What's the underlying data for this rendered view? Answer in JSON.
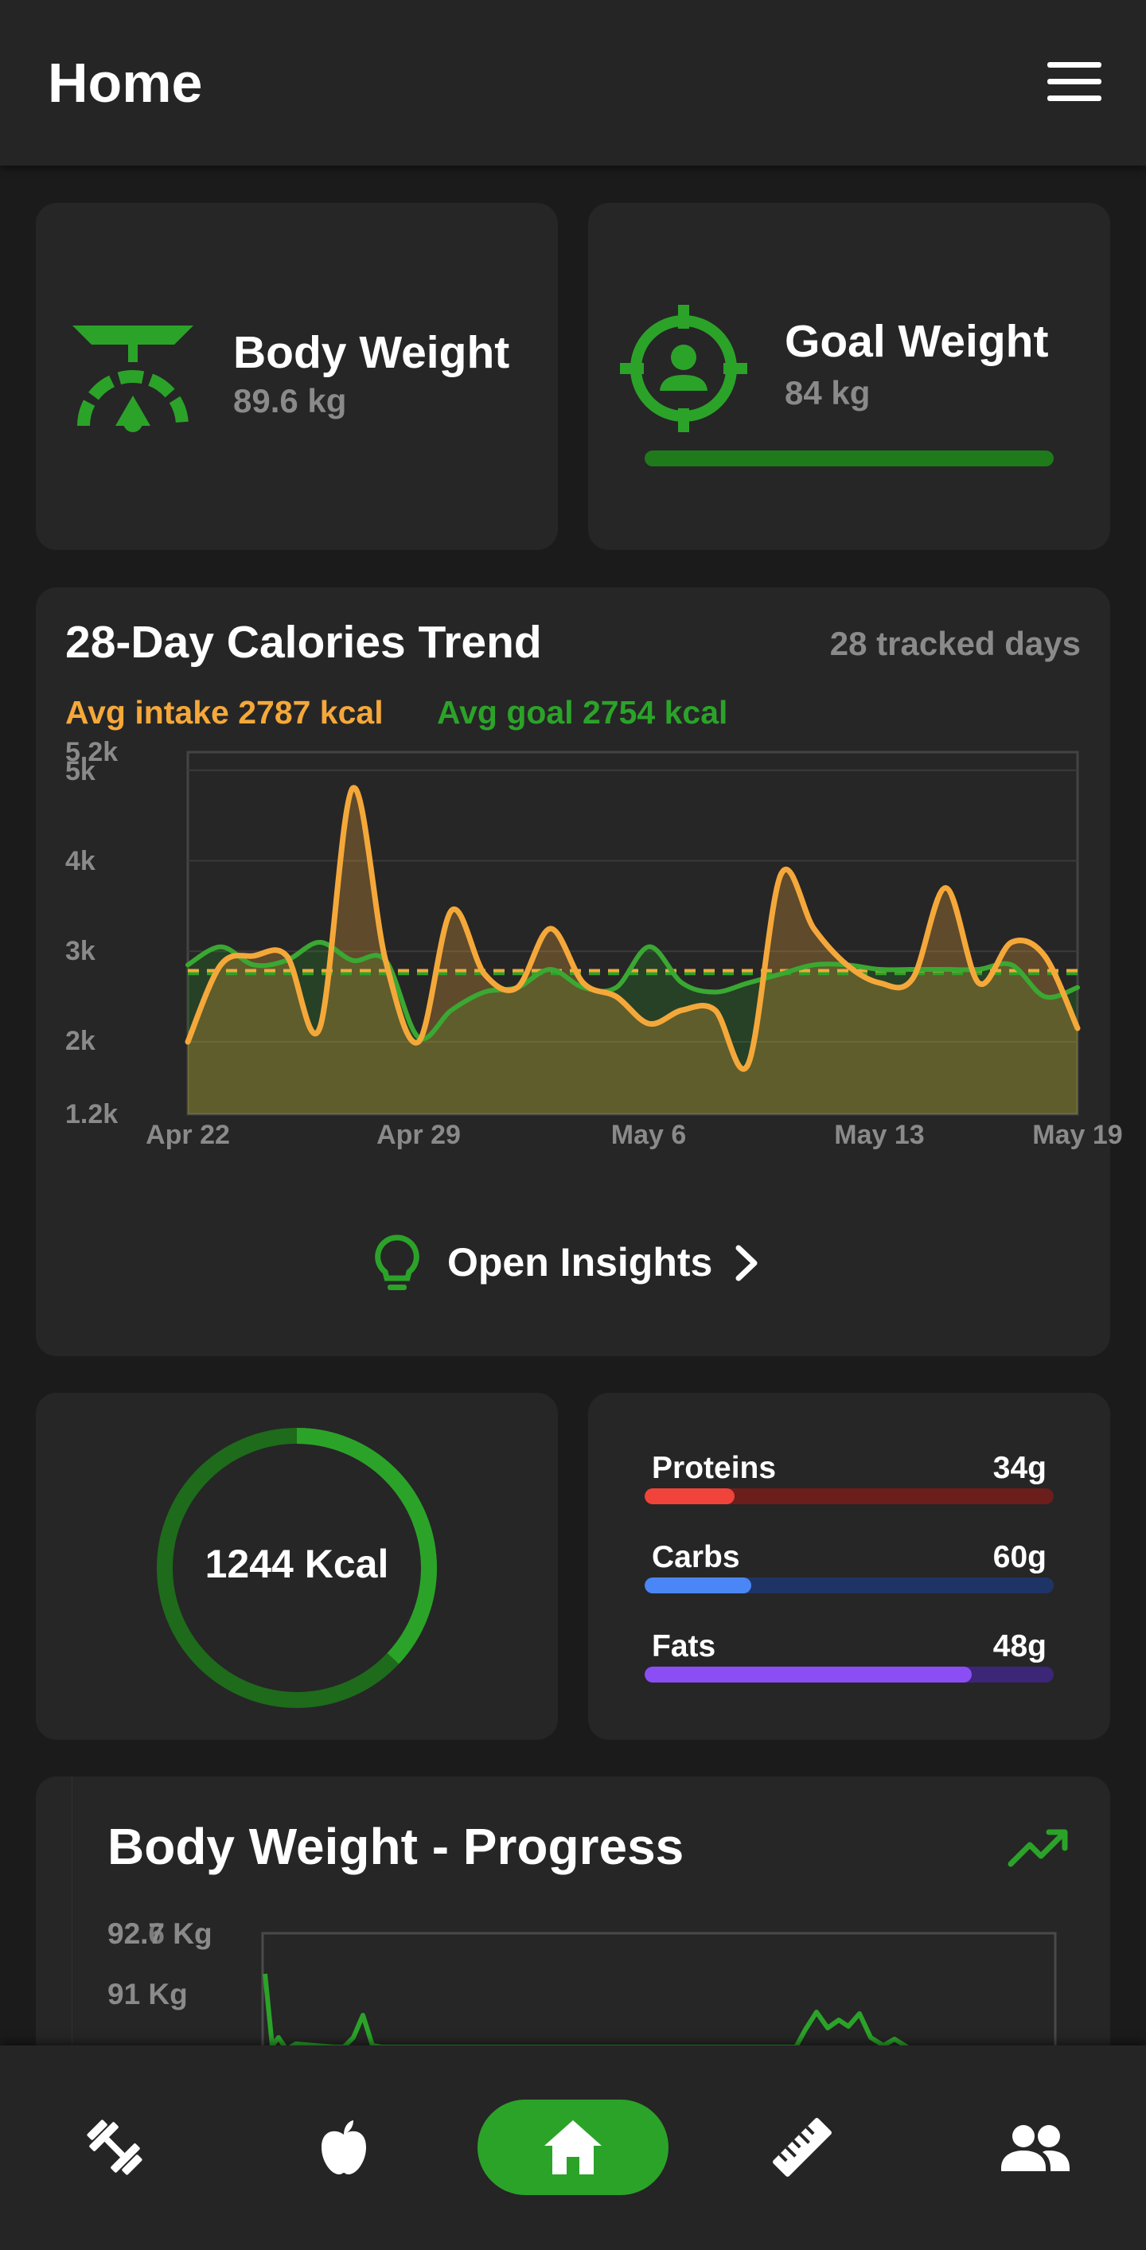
{
  "app_bar": {
    "title": "Home",
    "menu_icon": "hamburger-menu-icon"
  },
  "body_weight_card": {
    "icon": "weight-scale-icon",
    "title": "Body Weight",
    "value": "89.6 kg"
  },
  "goal_weight_card": {
    "icon": "target-person-icon",
    "title": "Goal Weight",
    "value": "84 kg",
    "progress": 1.0
  },
  "calories_trend": {
    "title": "28-Day Calories Trend",
    "tracked_days": "28 tracked days",
    "avg_intake": "Avg intake 2787 kcal",
    "avg_goal": "Avg goal 2754 kcal",
    "insights_label": "Open Insights",
    "insights_icon": "lightbulb-icon",
    "chevron_icon": "chevron-right-icon"
  },
  "chart_data": {
    "type": "line",
    "x": [
      "Apr 22",
      "Apr 23",
      "Apr 24",
      "Apr 25",
      "Apr 26",
      "Apr 27",
      "Apr 28",
      "Apr 29",
      "Apr 30",
      "May 1",
      "May 2",
      "May 3",
      "May 4",
      "May 5",
      "May 6",
      "May 7",
      "May 8",
      "May 9",
      "May 10",
      "May 11",
      "May 12",
      "May 13",
      "May 14",
      "May 15",
      "May 16",
      "May 17",
      "May 18",
      "May 19"
    ],
    "x_ticks": [
      "Apr 22",
      "Apr 29",
      "May 6",
      "May 13",
      "May 19"
    ],
    "y_ticks": [
      "5.2k",
      "5k",
      "4k",
      "3k",
      "2k",
      "1.2k"
    ],
    "ylim": [
      1200,
      5200
    ],
    "series": [
      {
        "color": "#f5a83a",
        "values": [
          2000,
          2850,
          2950,
          2950,
          2150,
          4800,
          2900,
          2000,
          3450,
          2750,
          2600,
          3250,
          2650,
          2500,
          2200,
          2350,
          2350,
          1750,
          3850,
          3250,
          2850,
          2650,
          2700,
          3700,
          2650,
          3100,
          2950,
          2150
        ]
      },
      {
        "color": "#3aa832",
        "values": [
          2850,
          3050,
          2850,
          2900,
          3100,
          2900,
          2900,
          2050,
          2350,
          2550,
          2600,
          2800,
          2600,
          2600,
          3050,
          2650,
          2550,
          2650,
          2750,
          2850,
          2850,
          2800,
          2800,
          2800,
          2800,
          2850,
          2500,
          2600
        ]
      }
    ],
    "avg_intake_line": 2787,
    "avg_goal_line": 2754
  },
  "calories_ring": {
    "text": "1244 Kcal",
    "progress": 0.37
  },
  "macros": [
    {
      "name": "Proteins",
      "value": "34g",
      "fill": 0.22,
      "fill_color": "#f0443a",
      "track_color": "#6b1e1b"
    },
    {
      "name": "Carbs",
      "value": "60g",
      "fill": 0.26,
      "fill_color": "#4a86f5",
      "track_color": "#1f3466"
    },
    {
      "name": "Fats",
      "value": "48g",
      "fill": 0.8,
      "fill_color": "#8b4ef5",
      "track_color": "#3c2677"
    }
  ],
  "body_weight_progress": {
    "title": "Body Weight - Progress",
    "trend_icon": "trending-up-icon",
    "y_labels": [
      "92.7 Kg",
      "92.6 Kg",
      "91 Kg"
    ]
  },
  "bottom_nav": [
    {
      "name": "workouts",
      "icon": "dumbbell-icon"
    },
    {
      "name": "nutrition",
      "icon": "apple-icon"
    },
    {
      "name": "home",
      "icon": "home-icon",
      "active": true
    },
    {
      "name": "measurements",
      "icon": "ruler-icon"
    },
    {
      "name": "community",
      "icon": "people-icon"
    }
  ]
}
